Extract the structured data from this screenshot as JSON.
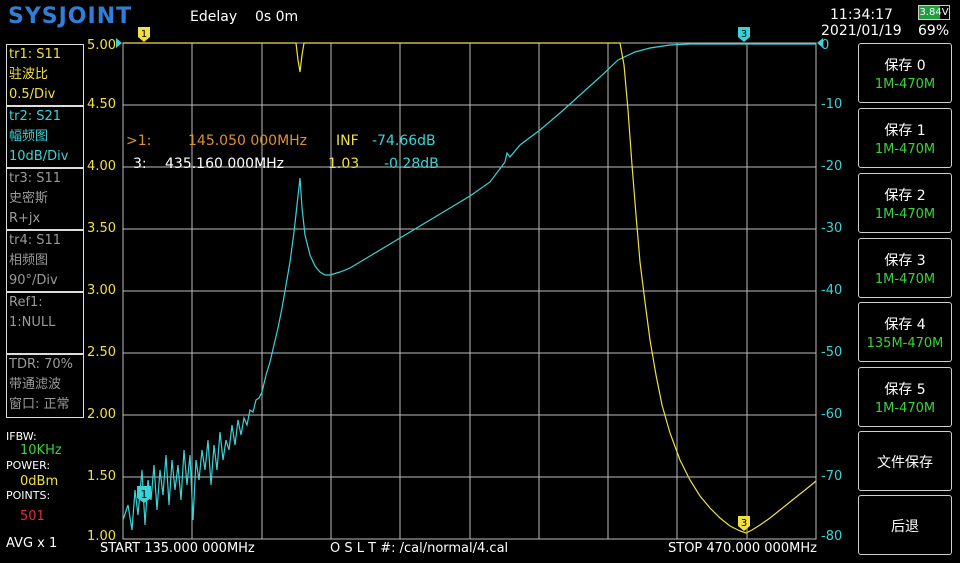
{
  "header": {
    "logo": "SYSJOINT",
    "edelay_label": "Edelay",
    "edelay_value": "0s 0m",
    "time": "11:34:17",
    "date": "2021/01/19",
    "battery_voltage": "3.84V",
    "battery_percent": "69%"
  },
  "traces": [
    {
      "id": "tr1:  S11",
      "format": "驻波比",
      "scale": "0.5/Div",
      "color": "yellow"
    },
    {
      "id": "tr2:  S21",
      "format": "幅频图",
      "scale": "10dB/Div",
      "color": "cyan"
    },
    {
      "id": "tr3:  S11",
      "format": "史密斯",
      "scale": "R+jx",
      "color": "gray"
    },
    {
      "id": "tr4:  S11",
      "format": "相频图",
      "scale": "90°/Div",
      "color": "gray"
    }
  ],
  "ref": {
    "line1": "Ref1:",
    "line2": "1:NULL"
  },
  "tdr": {
    "line1": "TDR: 70%",
    "line2": "带通滤波",
    "line3": "窗口: 正常"
  },
  "settings": {
    "ifbw_label": "IFBW:",
    "ifbw_value": "10KHz",
    "power_label": "POWER:",
    "power_value": "0dBm",
    "points_label": "POINTS:",
    "points_value": "501",
    "avg": "AVG x 1"
  },
  "markers": {
    "active": {
      "label": ">1:",
      "freq": "145.050 000MHz",
      "v1": "INF",
      "v2": "-74.66dB"
    },
    "m3": {
      "label": "3:",
      "freq": "435.160 000MHz",
      "v1": "1.03",
      "v2": "-0.28dB"
    },
    "flag1": "1",
    "flag3": "3"
  },
  "left_axis": [
    "5.00",
    "4.50",
    "4.00",
    "3.50",
    "3.00",
    "2.50",
    "2.00",
    "1.50",
    "1.00"
  ],
  "right_axis": [
    "0",
    "-10",
    "-20",
    "-30",
    "-40",
    "-50",
    "-60",
    "-70",
    "-80"
  ],
  "footer": {
    "start": "START  135.000 000MHz",
    "cal": "O S L T #:   /cal/normal/4.cal",
    "stop": "STOP  470.000 000MHz"
  },
  "buttons": [
    {
      "label": "保存 0",
      "sub": "1M-470M"
    },
    {
      "label": "保存 1",
      "sub": "1M-470M"
    },
    {
      "label": "保存 2",
      "sub": "1M-470M"
    },
    {
      "label": "保存 3",
      "sub": "1M-470M"
    },
    {
      "label": "保存 4",
      "sub": "135M-470M"
    },
    {
      "label": "保存 5",
      "sub": "1M-470M"
    },
    {
      "label": "文件保存",
      "sub": ""
    },
    {
      "label": "后退",
      "sub": ""
    }
  ],
  "colors": {
    "vswr": "#f0e040",
    "s21": "#3ad4d8",
    "grid": "#bdbdbd"
  }
}
